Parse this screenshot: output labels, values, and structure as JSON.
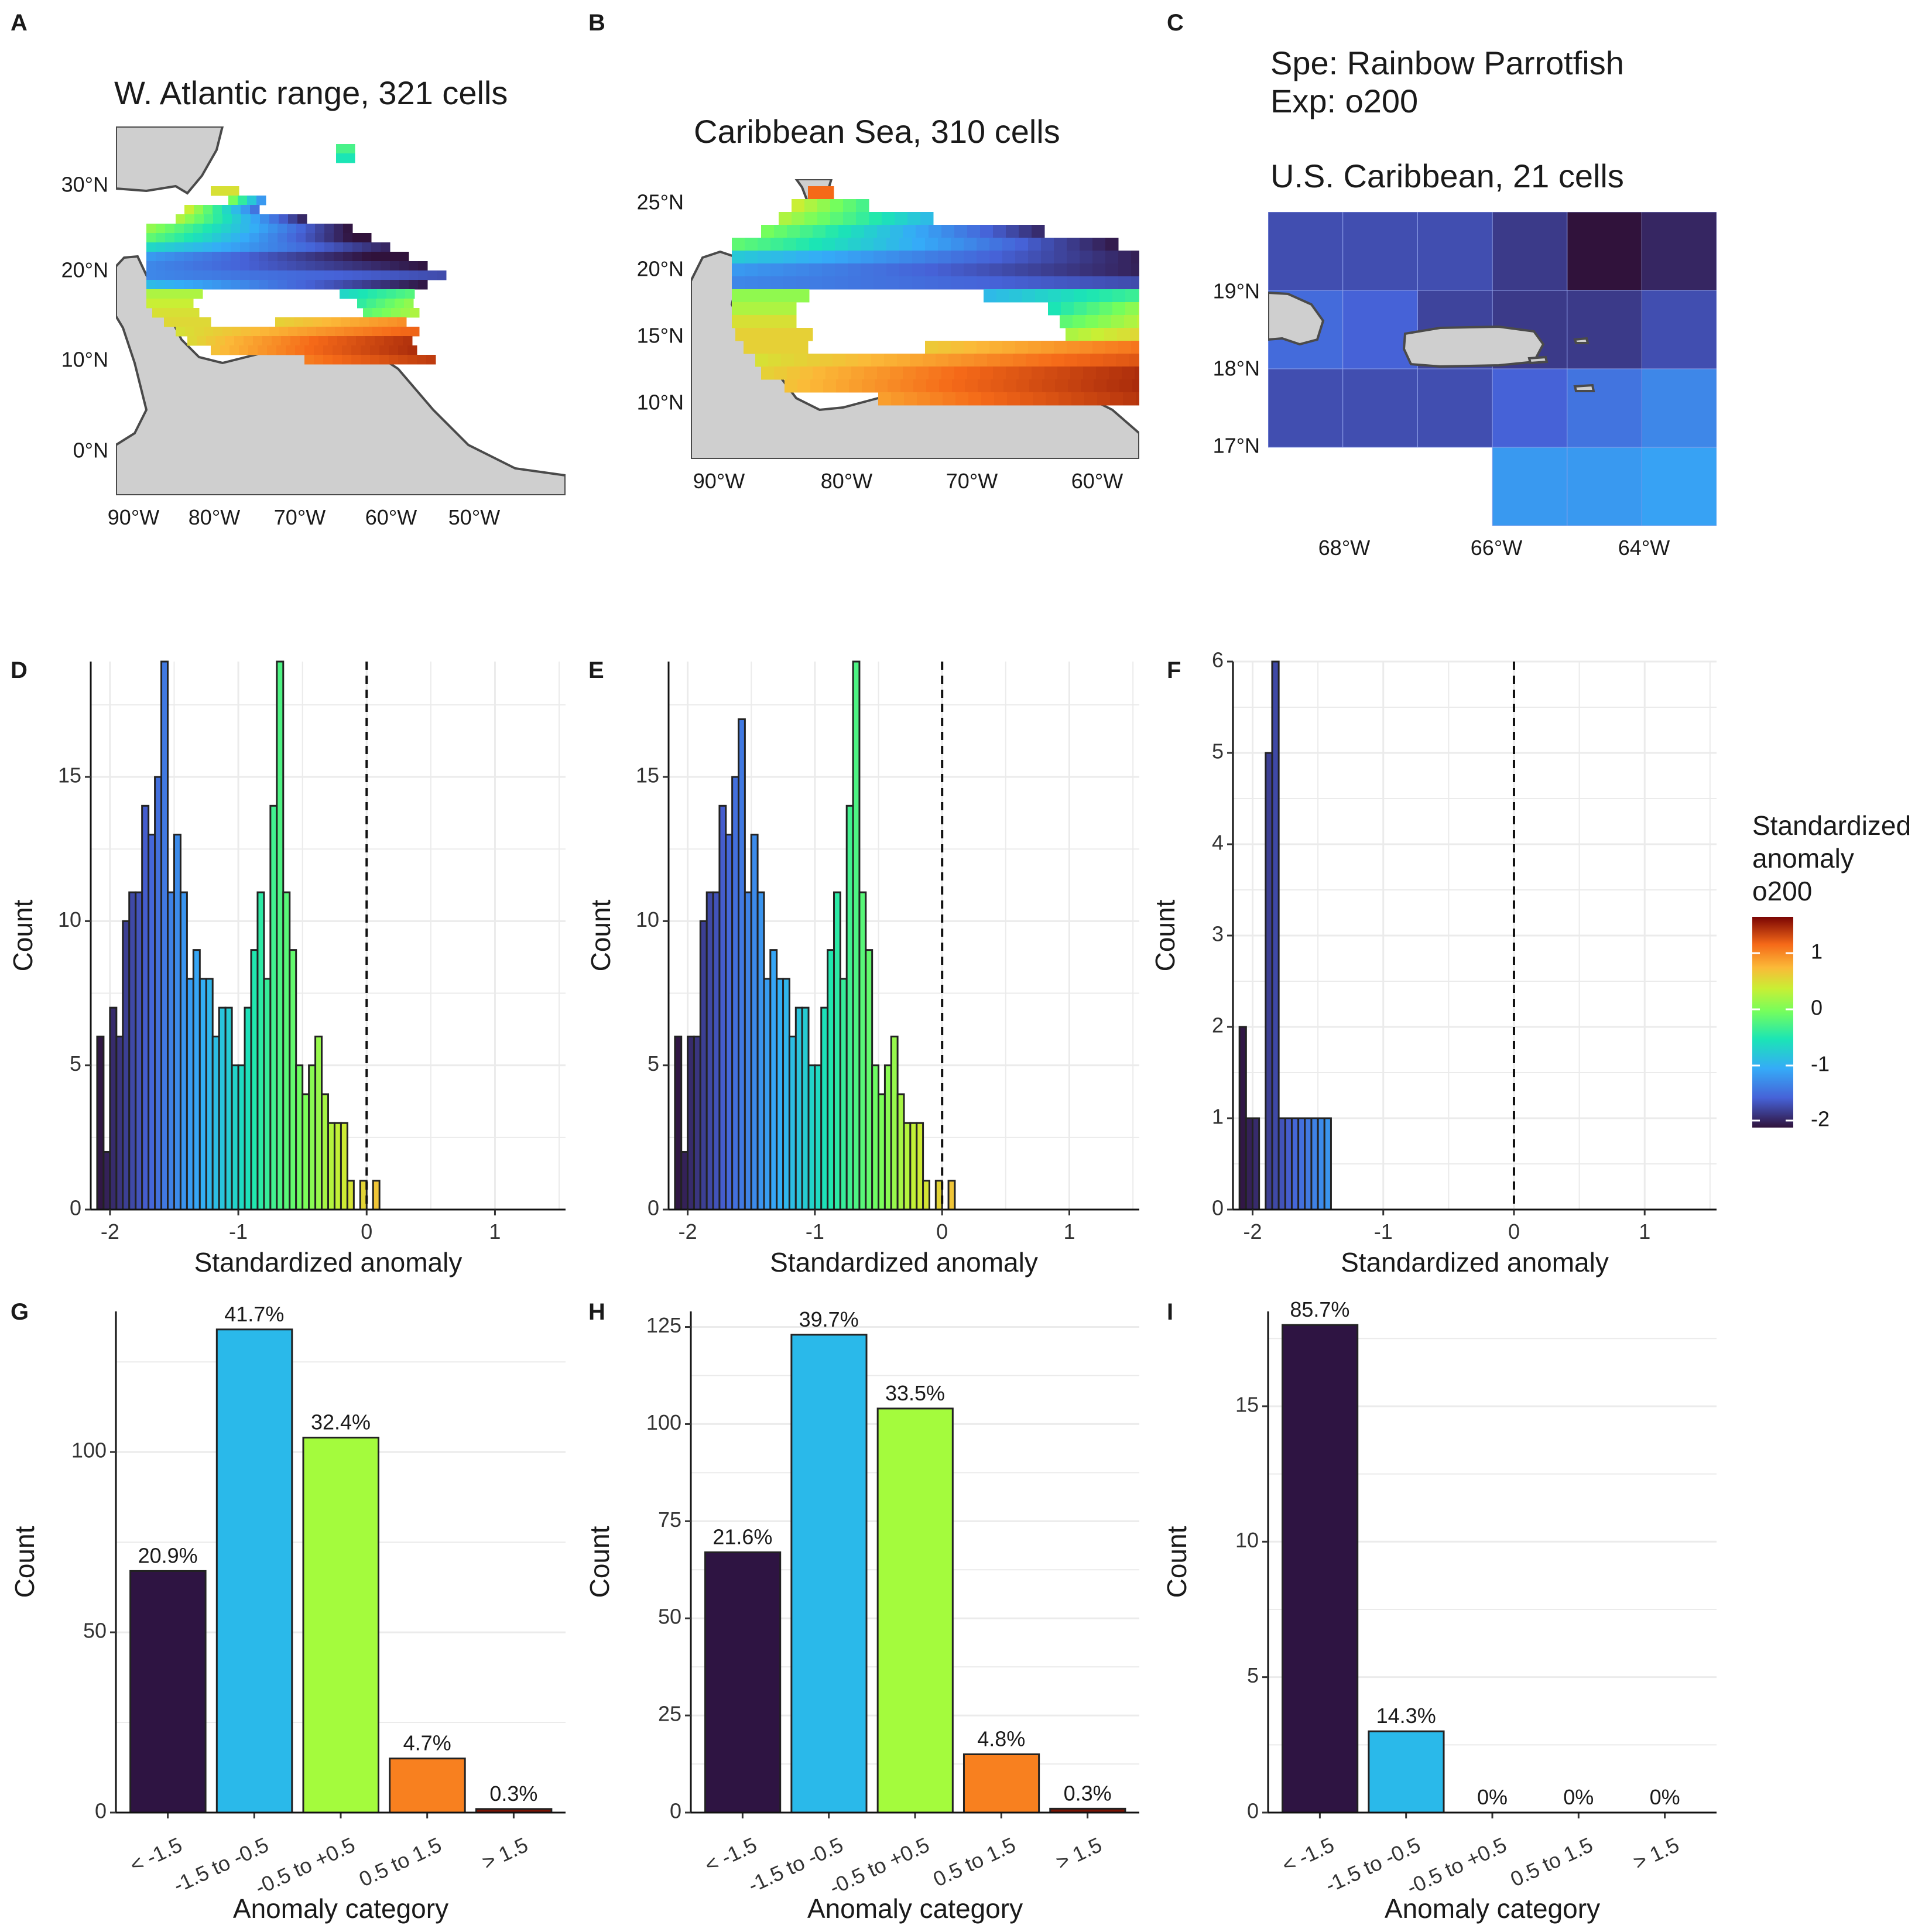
{
  "colors": {
    "land": "#cfcfcf",
    "coast": "#4a4a4a",
    "grid": "#ebebeb",
    "cat": [
      "#2e1442",
      "#2ab9ea",
      "#a4fb3d",
      "#f8801f",
      "#7a1405"
    ]
  },
  "panels": {
    "A": {
      "letter": "A",
      "title": "W. Atlantic range, 321 cells",
      "lat_labels": [
        "30°N",
        "20°N",
        "10°N",
        "0°N"
      ],
      "lon_labels": [
        "90°W",
        "80°W",
        "70°W",
        "60°W",
        "50°W"
      ]
    },
    "B": {
      "letter": "B",
      "title": "Caribbean Sea, 310 cells",
      "lat_labels": [
        "25°N",
        "20°N",
        "15°N",
        "10°N"
      ],
      "lon_labels": [
        "90°W",
        "80°W",
        "70°W",
        "60°W"
      ]
    },
    "C": {
      "letter": "C",
      "header_1": "Spe: Rainbow Parrotfish",
      "header_2": "Exp: o200",
      "title": "U.S. Caribbean, 21 cells",
      "lat_labels": [
        "19°N",
        "18°N",
        "17°N"
      ],
      "lon_labels": [
        "68°W",
        "66°W",
        "64°W"
      ]
    },
    "D": {
      "letter": "D"
    },
    "E": {
      "letter": "E"
    },
    "F": {
      "letter": "F"
    },
    "G": {
      "letter": "G"
    },
    "H": {
      "letter": "H"
    },
    "I": {
      "letter": "I"
    }
  },
  "legend": {
    "title_lines": [
      "Standardized",
      "anomaly",
      "o200"
    ],
    "ticks": [
      "1",
      "0",
      "-1",
      "-2"
    ]
  },
  "chart_data": [
    {
      "panel": "D",
      "type": "bar",
      "xlabel": "Standardized anomaly",
      "ylabel": "Count",
      "xlim": [
        -2.15,
        1.55
      ],
      "ylim": [
        0,
        19
      ],
      "x_ticks": [
        -2,
        -1,
        0,
        1
      ],
      "x_tick_labels": [
        "-2",
        "-1",
        "0",
        "1"
      ],
      "y_ticks": [
        0,
        5,
        10,
        15
      ],
      "y_tick_labels": [
        "0",
        "5",
        "10",
        "15"
      ],
      "bin_start": -2.1,
      "bin_width": 0.05,
      "reference_line_x": 0,
      "values": [
        6,
        2,
        7,
        6,
        10,
        11,
        11,
        14,
        13,
        15,
        19,
        11,
        13,
        11,
        8,
        9,
        8,
        8,
        6,
        7,
        7,
        5,
        5,
        7,
        9,
        11,
        8,
        14,
        19,
        11,
        9,
        5,
        4,
        5,
        6,
        4,
        3,
        3,
        3,
        1,
        0,
        1,
        0,
        1
      ]
    },
    {
      "panel": "E",
      "type": "bar",
      "xlabel": "Standardized anomaly",
      "ylabel": "Count",
      "xlim": [
        -2.15,
        1.55
      ],
      "ylim": [
        0,
        19
      ],
      "x_ticks": [
        -2,
        -1,
        0,
        1
      ],
      "x_tick_labels": [
        "-2",
        "-1",
        "0",
        "1"
      ],
      "y_ticks": [
        0,
        5,
        10,
        15
      ],
      "y_tick_labels": [
        "0",
        "5",
        "10",
        "15"
      ],
      "bin_start": -2.1,
      "bin_width": 0.05,
      "reference_line_x": 0,
      "values": [
        6,
        2,
        6,
        6,
        10,
        11,
        11,
        14,
        13,
        15,
        17,
        11,
        13,
        11,
        8,
        9,
        8,
        8,
        6,
        7,
        7,
        5,
        5,
        7,
        9,
        11,
        8,
        14,
        19,
        11,
        9,
        5,
        4,
        5,
        6,
        4,
        3,
        3,
        3,
        1,
        0,
        1,
        0,
        1
      ]
    },
    {
      "panel": "F",
      "type": "bar",
      "xlabel": "Standardized anomaly",
      "ylabel": "Count",
      "xlim": [
        -2.15,
        1.55
      ],
      "ylim": [
        0,
        6
      ],
      "x_ticks": [
        -2,
        -1,
        0,
        1
      ],
      "x_tick_labels": [
        "-2",
        "-1",
        "0",
        "1"
      ],
      "y_ticks": [
        0,
        1,
        2,
        3,
        4,
        5,
        6
      ],
      "y_tick_labels": [
        "0",
        "1",
        "2",
        "3",
        "4",
        "5",
        "6"
      ],
      "bin_start": -2.1,
      "bin_width": 0.05,
      "reference_line_x": 0,
      "values": [
        2,
        1,
        1,
        0,
        5,
        6,
        1,
        1,
        1,
        1,
        1,
        1,
        1,
        1
      ]
    },
    {
      "panel": "G",
      "type": "bar",
      "xlabel": "Anomaly category",
      "ylabel": "Count",
      "ylim": [
        0,
        139
      ],
      "y_ticks": [
        0,
        50,
        100
      ],
      "y_tick_labels": [
        "0",
        "50",
        "100"
      ],
      "categories": [
        "< -1.5",
        "-1.5 to -0.5",
        "-0.5 to +0.5",
        "0.5 to 1.5",
        "> 1.5"
      ],
      "values": [
        67,
        134,
        104,
        15,
        1
      ],
      "labels": [
        "20.9%",
        "41.7%",
        "32.4%",
        "4.7%",
        "0.3%"
      ]
    },
    {
      "panel": "H",
      "type": "bar",
      "xlabel": "Anomaly category",
      "ylabel": "Count",
      "ylim": [
        0,
        129
      ],
      "y_ticks": [
        0,
        25,
        50,
        75,
        100,
        125
      ],
      "y_tick_labels": [
        "0",
        "25",
        "50",
        "75",
        "100",
        "125"
      ],
      "categories": [
        "< -1.5",
        "-1.5 to -0.5",
        "-0.5 to +0.5",
        "0.5 to 1.5",
        "> 1.5"
      ],
      "values": [
        67,
        123,
        104,
        15,
        1
      ],
      "labels": [
        "21.6%",
        "39.7%",
        "33.5%",
        "4.8%",
        "0.3%"
      ]
    },
    {
      "panel": "I",
      "type": "bar",
      "xlabel": "Anomaly category",
      "ylabel": "Count",
      "ylim": [
        0,
        18.5
      ],
      "y_ticks": [
        0,
        5,
        10,
        15
      ],
      "y_tick_labels": [
        "0",
        "5",
        "10",
        "15"
      ],
      "categories": [
        "< -1.5",
        "-1.5 to -0.5",
        "-0.5 to +0.5",
        "0.5 to 1.5",
        "> 1.5"
      ],
      "values": [
        18,
        3,
        0,
        0,
        0
      ],
      "labels": [
        "85.7%",
        "14.3%",
        "0%",
        "0%",
        "0%"
      ]
    }
  ]
}
